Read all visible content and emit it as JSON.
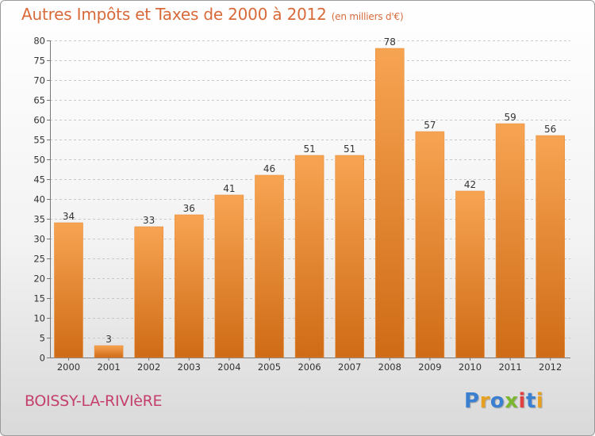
{
  "header": {
    "title": "Autres Impôts et Taxes de 2000 à 2012",
    "unit": "(en milliers d'€)"
  },
  "footer": {
    "commune": "BOISSY-LA-RIVIèRE",
    "logo": "Proxiti"
  },
  "colors": {
    "title": "#d86a3a",
    "commune": "#c4406b",
    "bar_top": "#f7a452",
    "bar_bottom": "#cf6b16",
    "logo_letters": [
      "#3a7fd0",
      "#e8a020",
      "#3a7fd0",
      "#7cb82f",
      "#e04040",
      "#3a7fd0",
      "#e8a020"
    ]
  },
  "chart_data": {
    "type": "bar",
    "categories": [
      "2000",
      "2001",
      "2002",
      "2003",
      "2004",
      "2005",
      "2006",
      "2007",
      "2008",
      "2009",
      "2010",
      "2011",
      "2012"
    ],
    "values": [
      34,
      3,
      33,
      36,
      41,
      46,
      51,
      51,
      78,
      57,
      42,
      59,
      56
    ],
    "ylim": [
      0,
      80
    ],
    "yticks": [
      0,
      5,
      10,
      15,
      20,
      25,
      30,
      35,
      40,
      45,
      50,
      55,
      60,
      65,
      70,
      75,
      80
    ],
    "grid": "horizontal dashed",
    "data_labels": true
  }
}
